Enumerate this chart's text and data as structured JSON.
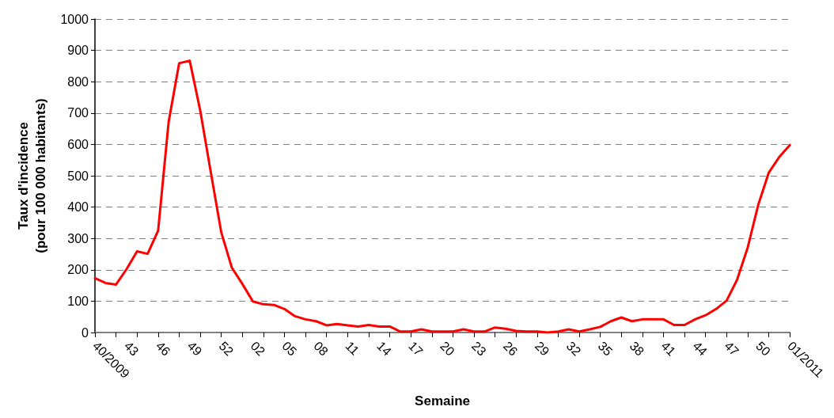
{
  "chart_data": {
    "type": "line",
    "xlabel": "Semaine",
    "ylabel": "Taux d'incidence\n(pour 100 000 habitants)",
    "categories": [
      "40/2009",
      null,
      null,
      "43",
      null,
      null,
      "46",
      null,
      null,
      "49",
      null,
      null,
      "52",
      null,
      null,
      "02",
      null,
      null,
      "05",
      null,
      null,
      "08",
      null,
      null,
      "11",
      null,
      null,
      "14",
      null,
      null,
      "17",
      null,
      null,
      "20",
      null,
      null,
      "23",
      null,
      null,
      "26",
      null,
      null,
      "29",
      null,
      null,
      "32",
      null,
      null,
      "35",
      null,
      null,
      "38",
      null,
      null,
      "41",
      null,
      null,
      "44",
      null,
      null,
      "47",
      null,
      null,
      "50",
      null,
      null,
      "01/2011"
    ],
    "series": [
      {
        "color": "#ff0000",
        "values": [
          173,
          158,
          153,
          202,
          259,
          251,
          325,
          672,
          859,
          867,
          708,
          512,
          319,
          207,
          155,
          99,
          90,
          88,
          75,
          52,
          42,
          36,
          23,
          27,
          23,
          19,
          24,
          19,
          19,
          3,
          3,
          10,
          3,
          3,
          3,
          10,
          3,
          3,
          16,
          12,
          5,
          3,
          3,
          0,
          3,
          10,
          3,
          10,
          18,
          36,
          48,
          36,
          42,
          42,
          42,
          24,
          24,
          42,
          55,
          75,
          102,
          169,
          271,
          407,
          510,
          560,
          598
        ]
      }
    ],
    "ylim": [
      0,
      1000
    ],
    "yticks": [
      0,
      100,
      200,
      300,
      400,
      500,
      600,
      700,
      800,
      900,
      1000
    ],
    "grid": "y",
    "marker": "none",
    "line_style": "solid"
  }
}
